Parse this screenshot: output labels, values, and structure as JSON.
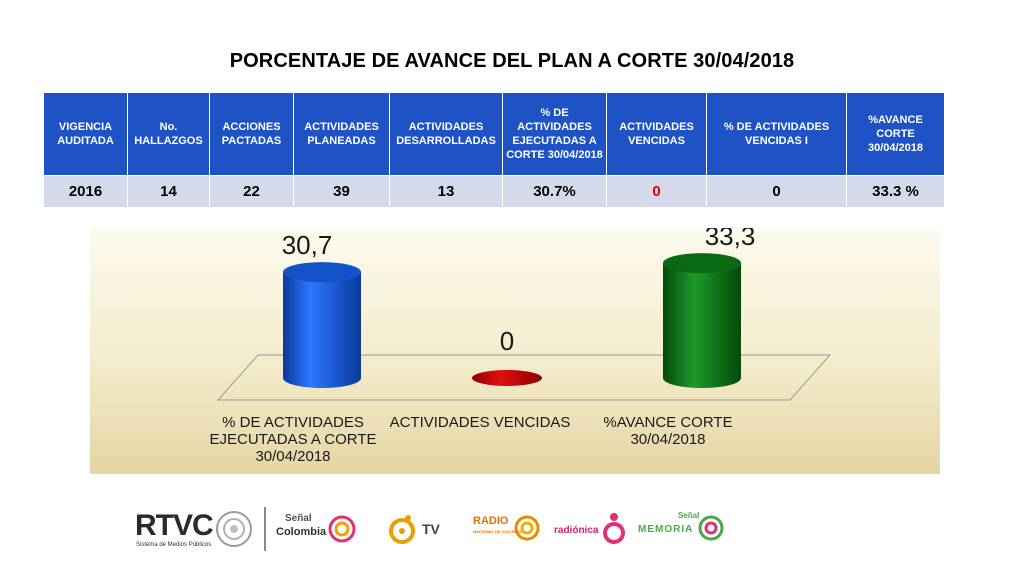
{
  "title": "PORCENTAJE  DE AVANCE DEL PLAN A CORTE 30/04/2018",
  "table": {
    "headers": [
      "VIGENCIA AUDITADA",
      "No. HALLAZGOS",
      "ACCIONES PACTADAS",
      "ACTIVIDADES PLANEADAS",
      "ACTIVIDADES DESARROLLADAS",
      "% DE ACTIVIDADES EJECUTADAS A CORTE 30/04/2018",
      "ACTIVIDADES VENCIDAS",
      "% DE ACTIVIDADES VENCIDAS I",
      "%AVANCE CORTE 30/04/2018"
    ],
    "row": [
      "2016",
      "14",
      "22",
      "39",
      "13",
      "30.7%",
      "0",
      "0",
      "33.3 %"
    ]
  },
  "chart_data": {
    "type": "bar",
    "categories": [
      "% DE ACTIVIDADES EJECUTADAS A CORTE 30/04/2018",
      "ACTIVIDADES VENCIDAS",
      "%AVANCE  CORTE 30/04/2018"
    ],
    "values": [
      30.7,
      0,
      33.3
    ],
    "data_labels": [
      "30,7",
      "0",
      "33,3"
    ],
    "colors": [
      "#1452c8",
      "#c00000",
      "#0a6a14"
    ],
    "style": "3d-cylinder",
    "grid": false,
    "legend": "none"
  },
  "logos": {
    "rtvc": "RTVC",
    "rtvc_sub": "Sistema de Medios Públicos",
    "colombia_top": "Señal",
    "colombia_bottom": "Colombia",
    "tv": "TV",
    "radio_top": "RADIO",
    "radio_sub": "NACIONAL DE COLOMBIA",
    "radionica": "radiónica",
    "memoria_top": "Señal",
    "memoria_bottom": "MEMORIA"
  }
}
